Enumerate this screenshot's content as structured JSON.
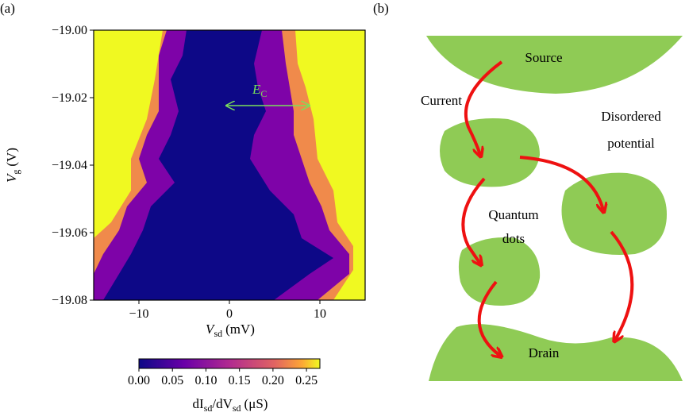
{
  "chart_data": {
    "type": "heatmap",
    "panel_label": "(a)",
    "xlabel": {
      "symbol": "V",
      "subscript": "sd",
      "unit": "(mV)"
    },
    "ylabel": {
      "symbol": "V",
      "subscript": "g",
      "unit": "(V)"
    },
    "xlim": [
      -15,
      15
    ],
    "xticks": [
      {
        "value": -10,
        "label": "−10"
      },
      0,
      10
    ],
    "ylim": [
      -19.08,
      -19.0
    ],
    "yticks": [
      {
        "value": -19.0,
        "label": "−19.00"
      },
      {
        "value": -19.02,
        "label": "−19.02"
      },
      {
        "value": -19.04,
        "label": "−19.04"
      },
      {
        "value": -19.06,
        "label": "−19.06"
      },
      {
        "value": -19.08,
        "label": "−19.08"
      }
    ],
    "annotation": {
      "symbol": "E",
      "subscript": "C",
      "color": "#7be05a"
    },
    "colorbar": {
      "lim": [
        0,
        0.27
      ],
      "ticks": [
        {
          "value": 0,
          "label": "0.00"
        },
        {
          "value": 0.05,
          "label": "0.05"
        },
        {
          "value": 0.1,
          "label": "0.10"
        },
        {
          "value": 0.15,
          "label": "0.15"
        },
        {
          "value": 0.2,
          "label": "0.20"
        },
        {
          "value": 0.25,
          "label": "0.25"
        }
      ],
      "label": {
        "d1": "dI",
        "sub1": "sd",
        "slash": "/dV",
        "sub2": "sd",
        "unit": "(μS)"
      }
    }
  },
  "diagram": {
    "panel_label": "(b)",
    "source": "Source",
    "current": "Current",
    "disordered_potential": [
      "Disordered",
      "potential"
    ],
    "quantum_dots": [
      "Quantum",
      "dots"
    ],
    "drain": "Drain"
  }
}
